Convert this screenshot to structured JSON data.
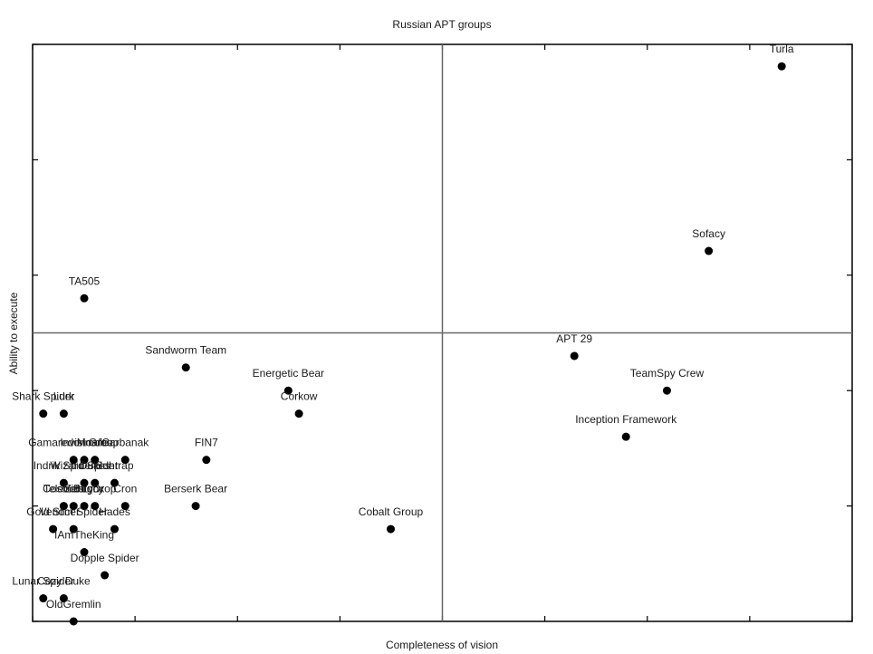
{
  "chart_data": {
    "type": "scatter",
    "title": "Russian APT groups",
    "xlabel": "Completeness of vision",
    "ylabel": "Ability to execute",
    "xlim": [
      0,
      10
    ],
    "ylim": [
      0,
      10
    ],
    "quadrant_split": {
      "x": 5,
      "y": 5
    },
    "x_ticks": [
      0,
      1.25,
      2.5,
      3.75,
      5,
      6.25,
      7.5,
      8.75,
      10
    ],
    "y_ticks": [
      0,
      2,
      4,
      6,
      8,
      10
    ],
    "tick_labels_shown": false,
    "grid": false,
    "legend": "none",
    "marker_color": "#000000",
    "points": [
      {
        "label": "Turla",
        "x": 9.14,
        "y": 9.62
      },
      {
        "label": "Sofacy",
        "x": 8.25,
        "y": 6.42
      },
      {
        "label": "TA505",
        "x": 0.63,
        "y": 5.6
      },
      {
        "label": "APT 29",
        "x": 6.61,
        "y": 4.6
      },
      {
        "label": "Sandworm Team",
        "x": 1.87,
        "y": 4.4
      },
      {
        "label": "Energetic Bear",
        "x": 3.12,
        "y": 4.0
      },
      {
        "label": "TeamSpy Crew",
        "x": 7.74,
        "y": 4.0
      },
      {
        "label": "Corkow",
        "x": 3.25,
        "y": 3.6
      },
      {
        "label": "Inception Framework",
        "x": 7.24,
        "y": 3.2
      },
      {
        "label": "FIN7",
        "x": 2.12,
        "y": 2.8
      },
      {
        "label": "Berserk Bear",
        "x": 1.99,
        "y": 2.0
      },
      {
        "label": "Cobalt Group",
        "x": 4.37,
        "y": 1.6
      },
      {
        "label": "Shark Spider",
        "x": 0.13,
        "y": 3.6
      },
      {
        "label": "Lurk",
        "x": 0.38,
        "y": 3.6
      },
      {
        "label": "Gamaredon Group",
        "x": 0.5,
        "y": 2.8
      },
      {
        "label": "Invisimole",
        "x": 0.63,
        "y": 2.8
      },
      {
        "label": "Moafee",
        "x": 0.76,
        "y": 2.8
      },
      {
        "label": "Carbanak",
        "x": 1.13,
        "y": 2.8
      },
      {
        "label": "Indrik Spider",
        "x": 0.38,
        "y": 2.4
      },
      {
        "label": "Wizard Spider",
        "x": 0.63,
        "y": 2.4
      },
      {
        "label": "Dukes",
        "x": 0.76,
        "y": 2.4
      },
      {
        "label": "Buhtrap",
        "x": 1.0,
        "y": 2.4
      },
      {
        "label": "Cron",
        "x": 1.13,
        "y": 2.0
      },
      {
        "label": "Telebots",
        "x": 0.38,
        "y": 2.0
      },
      {
        "label": "Cosmic Lynx",
        "x": 0.5,
        "y": 2.0
      },
      {
        "label": "Zebrocy",
        "x": 0.63,
        "y": 2.0
      },
      {
        "label": "BugDrop",
        "x": 0.76,
        "y": 2.0
      },
      {
        "label": "Gold Slicer",
        "x": 0.25,
        "y": 1.6
      },
      {
        "label": "Venom Spider",
        "x": 0.5,
        "y": 1.6
      },
      {
        "label": "Hades",
        "x": 1.0,
        "y": 1.6
      },
      {
        "label": "IAmTheKing",
        "x": 0.63,
        "y": 1.2
      },
      {
        "label": "Lunar Spider",
        "x": 0.13,
        "y": 0.4
      },
      {
        "label": "Cozy Duke",
        "x": 0.38,
        "y": 0.4
      },
      {
        "label": "Dopple Spider",
        "x": 0.88,
        "y": 0.8
      },
      {
        "label": "OldGremlin",
        "x": 0.5,
        "y": 0.0
      }
    ]
  }
}
